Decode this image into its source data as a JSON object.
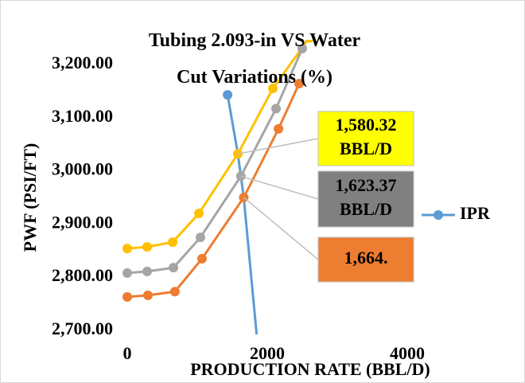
{
  "chart_data": {
    "type": "line",
    "title": "Tubing 2.093-in VS Water Cut Variations (%)",
    "x_label": "PRODUCTION RATE (BBL/D)",
    "y_label": "PWF (PSI/FT)",
    "xlim": [
      0,
      4000
    ],
    "xticks": [
      0,
      2000,
      4000
    ],
    "ylim": [
      2700,
      3200
    ],
    "yticks": [
      {
        "value": 2700,
        "label": "2,700.00"
      },
      {
        "value": 2800,
        "label": "2,800.00"
      },
      {
        "value": 2900,
        "label": "2,900.00"
      },
      {
        "value": 3000,
        "label": "3,000.00"
      },
      {
        "value": 3100,
        "label": "3,100.00"
      },
      {
        "value": 3200,
        "label": "3,200.00"
      }
    ],
    "grid": false,
    "legend": "right",
    "series": [
      {
        "name": "IPR",
        "color": "#5b9bd5",
        "x": [
          1433,
          1580,
          1623,
          1664,
          1900
        ],
        "values": [
          3143,
          3032,
          2990,
          2950,
          2620
        ],
        "markers": [
          0
        ]
      },
      {
        "color": "#ffc000",
        "x": [
          0,
          284,
          648,
          1023,
          1580,
          2080,
          2600
        ],
        "values": [
          2854,
          2857,
          2866,
          2920,
          3032,
          3155,
          3250
        ]
      },
      {
        "color": "#a5a5a5",
        "x": [
          0,
          284,
          660,
          1045,
          1623,
          2125,
          2500
        ],
        "values": [
          2808,
          2811,
          2818,
          2875,
          2990,
          3117,
          3230
        ]
      },
      {
        "color": "#ed7d31",
        "x": [
          0,
          295,
          680,
          1068,
          1664,
          2160,
          2455
        ],
        "values": [
          2763,
          2766,
          2773,
          2835,
          2950,
          3079,
          3164
        ]
      }
    ],
    "annotations": [
      {
        "text": "1,580.32 BBL/D",
        "series": 1,
        "point": 4,
        "color": "#ffff00",
        "text_color": "#000000"
      },
      {
        "text": "1,623.37 BBL/D",
        "series": 2,
        "point": 4,
        "color": "#808080",
        "text_color": "#ffffff"
      },
      {
        "text": "1,664.",
        "series": 3,
        "point": 4,
        "color": "#ed7d31",
        "text_color": "#ffffff"
      }
    ]
  }
}
